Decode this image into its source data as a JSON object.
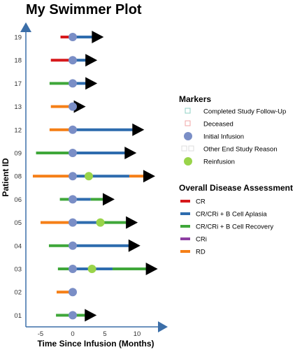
{
  "chart_data": {
    "type": "swimmer",
    "title": "My Swimmer Plot",
    "xlabel": "Time Since Infusion (Months)",
    "ylabel": "Patient ID",
    "xlim": [
      -7,
      13.5
    ],
    "xticks": [
      "-5",
      "0",
      "5",
      "10"
    ],
    "xtick_values": [
      -5,
      0,
      5,
      10
    ],
    "patients": [
      "01",
      "02",
      "03",
      "04",
      "05",
      "06",
      "08",
      "09",
      "12",
      "13",
      "17",
      "18",
      "19"
    ],
    "colors": {
      "CR": "#d7191c",
      "CR/CRi + B Cell Aplasia": "#2e6cae",
      "CR/CRi + B Cell Recovery": "#3fa73a",
      "CRi": "#8e3fa3",
      "RD": "#f57f17",
      "initial_infusion": "#7a8ec6",
      "reinfusion": "#99d44a",
      "axis": "#3b6ea8"
    },
    "bars": [
      {
        "patient": "01",
        "segments": [
          {
            "from": -2.6,
            "to": 2.2,
            "status": "CR/CRi + B Cell Recovery"
          }
        ],
        "arrow": 2.2
      },
      {
        "patient": "02",
        "segments": [
          {
            "from": -2.5,
            "to": 0.3,
            "status": "RD"
          }
        ],
        "arrow": null
      },
      {
        "patient": "03",
        "segments": [
          {
            "from": -2.3,
            "to": 0.0,
            "status": "CR/CRi + B Cell Recovery"
          },
          {
            "from": 0.0,
            "to": 6.2,
            "status": "CR/CRi + B Cell Aplasia"
          },
          {
            "from": 6.2,
            "to": 11.7,
            "status": "CR/CRi + B Cell Recovery"
          }
        ],
        "arrow": 11.7
      },
      {
        "patient": "04",
        "segments": [
          {
            "from": -3.7,
            "to": 0.0,
            "status": "CR/CRi + B Cell Recovery"
          },
          {
            "from": 0.0,
            "to": 9.0,
            "status": "CR/CRi + B Cell Aplasia"
          }
        ],
        "arrow": 9.0
      },
      {
        "patient": "05",
        "segments": [
          {
            "from": -5.0,
            "to": 0.0,
            "status": "RD"
          },
          {
            "from": 0.0,
            "to": 4.5,
            "status": "CR/CRi + B Cell Aplasia"
          },
          {
            "from": 4.5,
            "to": 8.6,
            "status": "CR/CRi + B Cell Recovery"
          }
        ],
        "arrow": 8.6
      },
      {
        "patient": "06",
        "segments": [
          {
            "from": -2.0,
            "to": 0.0,
            "status": "CR/CRi + B Cell Recovery"
          },
          {
            "from": 0.0,
            "to": 2.8,
            "status": "CR/CRi + B Cell Aplasia"
          },
          {
            "from": 2.8,
            "to": 5.0,
            "status": "CR/CRi + B Cell Recovery"
          }
        ],
        "arrow": 5.0
      },
      {
        "patient": "08",
        "segments": [
          {
            "from": -6.2,
            "to": 0.0,
            "status": "RD"
          },
          {
            "from": 0.0,
            "to": 8.8,
            "status": "CR/CRi + B Cell Aplasia"
          },
          {
            "from": 8.8,
            "to": 11.3,
            "status": "RD"
          }
        ],
        "arrow": 11.3
      },
      {
        "patient": "09",
        "segments": [
          {
            "from": -5.7,
            "to": 0.0,
            "status": "CR/CRi + B Cell Recovery"
          },
          {
            "from": 0.0,
            "to": 8.4,
            "status": "CR/CRi + B Cell Aplasia"
          }
        ],
        "arrow": 8.4
      },
      {
        "patient": "12",
        "segments": [
          {
            "from": -3.6,
            "to": 0.0,
            "status": "RD"
          },
          {
            "from": 0.0,
            "to": 9.6,
            "status": "CR/CRi + B Cell Aplasia"
          }
        ],
        "arrow": 9.6
      },
      {
        "patient": "13",
        "segments": [
          {
            "from": -3.4,
            "to": 0.5,
            "status": "RD"
          }
        ],
        "arrow": 0.5
      },
      {
        "patient": "17",
        "segments": [
          {
            "from": -3.6,
            "to": 0.0,
            "status": "CR/CRi + B Cell Recovery"
          },
          {
            "from": 0.0,
            "to": 2.3,
            "status": "CR/CRi + B Cell Aplasia"
          }
        ],
        "arrow": 2.3
      },
      {
        "patient": "18",
        "segments": [
          {
            "from": -3.4,
            "to": 0.0,
            "status": "CR"
          },
          {
            "from": 0.0,
            "to": 2.3,
            "status": "CR/CRi + B Cell Aplasia"
          }
        ],
        "arrow": 2.3
      },
      {
        "patient": "19",
        "segments": [
          {
            "from": -1.9,
            "to": 0.0,
            "status": "CR"
          },
          {
            "from": 0.0,
            "to": 3.3,
            "status": "CR/CRi + B Cell Aplasia"
          }
        ],
        "arrow": 3.3
      }
    ],
    "initial_infusion_x": 0,
    "reinfusions": [
      {
        "patient": "03",
        "x": 3.0
      },
      {
        "patient": "05",
        "x": 4.3
      },
      {
        "patient": "08",
        "x": 2.5
      }
    ],
    "legend": {
      "markers_title": "Markers",
      "markers": [
        {
          "label": "Completed Study Follow-Up",
          "symbol": "square-open",
          "color": "#8fd0c4"
        },
        {
          "label": "Deceased",
          "symbol": "square-open",
          "color": "#f2a6a6"
        },
        {
          "label": "Initial Infusion",
          "symbol": "circle",
          "color": "#7a8ec6"
        },
        {
          "label": "Other End Study Reason",
          "symbol": "square-open-double",
          "color": "#dddddd"
        },
        {
          "label": "Reinfusion",
          "symbol": "circle",
          "color": "#99d44a"
        }
      ],
      "assessment_title": "Overall Disease Assessment",
      "assessments": [
        "CR",
        "CR/CRi + B Cell Aplasia",
        "CR/CRi + B Cell Recovery",
        "CRi",
        "RD"
      ]
    }
  }
}
